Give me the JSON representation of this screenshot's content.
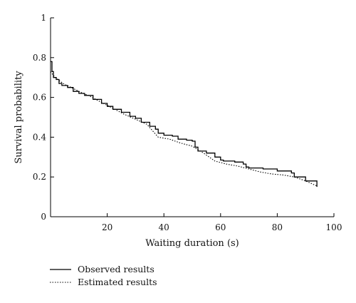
{
  "chart_data": {
    "type": "line",
    "title": "",
    "xlabel": "Waiting duration (s)",
    "ylabel": "Survival probability",
    "xlim": [
      0,
      100
    ],
    "ylim": [
      0,
      1
    ],
    "xticks": [
      20,
      40,
      60,
      80,
      100
    ],
    "yticks": [
      0,
      0.2,
      0.4,
      0.6,
      0.8,
      1
    ],
    "ytick_labels": [
      "0",
      "0.2",
      "0.4",
      "0.6",
      "0.8",
      "1"
    ],
    "grid": false,
    "legend_position": "bottom-left, below plot",
    "series": [
      {
        "name": "Observed results",
        "style": "solid",
        "color": "#000000",
        "x": [
          0,
          0.5,
          1,
          2,
          3,
          4,
          6,
          8,
          10,
          12,
          15,
          18,
          20,
          22,
          25,
          28,
          30,
          32,
          35,
          37,
          38,
          40,
          43,
          45,
          48,
          50,
          51,
          52,
          55,
          58,
          60,
          61,
          65,
          68,
          69,
          70,
          75,
          80,
          85,
          86,
          90,
          94
        ],
        "y": [
          0.78,
          0.73,
          0.7,
          0.69,
          0.67,
          0.66,
          0.65,
          0.63,
          0.62,
          0.61,
          0.59,
          0.57,
          0.555,
          0.54,
          0.525,
          0.505,
          0.495,
          0.475,
          0.455,
          0.44,
          0.42,
          0.41,
          0.405,
          0.39,
          0.385,
          0.38,
          0.35,
          0.33,
          0.32,
          0.3,
          0.285,
          0.28,
          0.275,
          0.265,
          0.25,
          0.245,
          0.24,
          0.23,
          0.22,
          0.2,
          0.18,
          0.15
        ]
      },
      {
        "name": "Estimated results",
        "style": "dotted",
        "color": "#000000",
        "x": [
          0,
          1,
          3,
          5,
          8,
          10,
          14,
          18,
          22,
          26,
          30,
          34,
          38,
          42,
          46,
          50,
          54,
          58,
          62,
          66,
          70,
          74,
          78,
          82,
          86,
          90,
          94
        ],
        "y": [
          0.73,
          0.71,
          0.685,
          0.665,
          0.645,
          0.63,
          0.605,
          0.575,
          0.545,
          0.515,
          0.49,
          0.465,
          0.4,
          0.39,
          0.37,
          0.355,
          0.32,
          0.28,
          0.265,
          0.255,
          0.24,
          0.225,
          0.215,
          0.21,
          0.2,
          0.18,
          0.155
        ]
      }
    ]
  }
}
